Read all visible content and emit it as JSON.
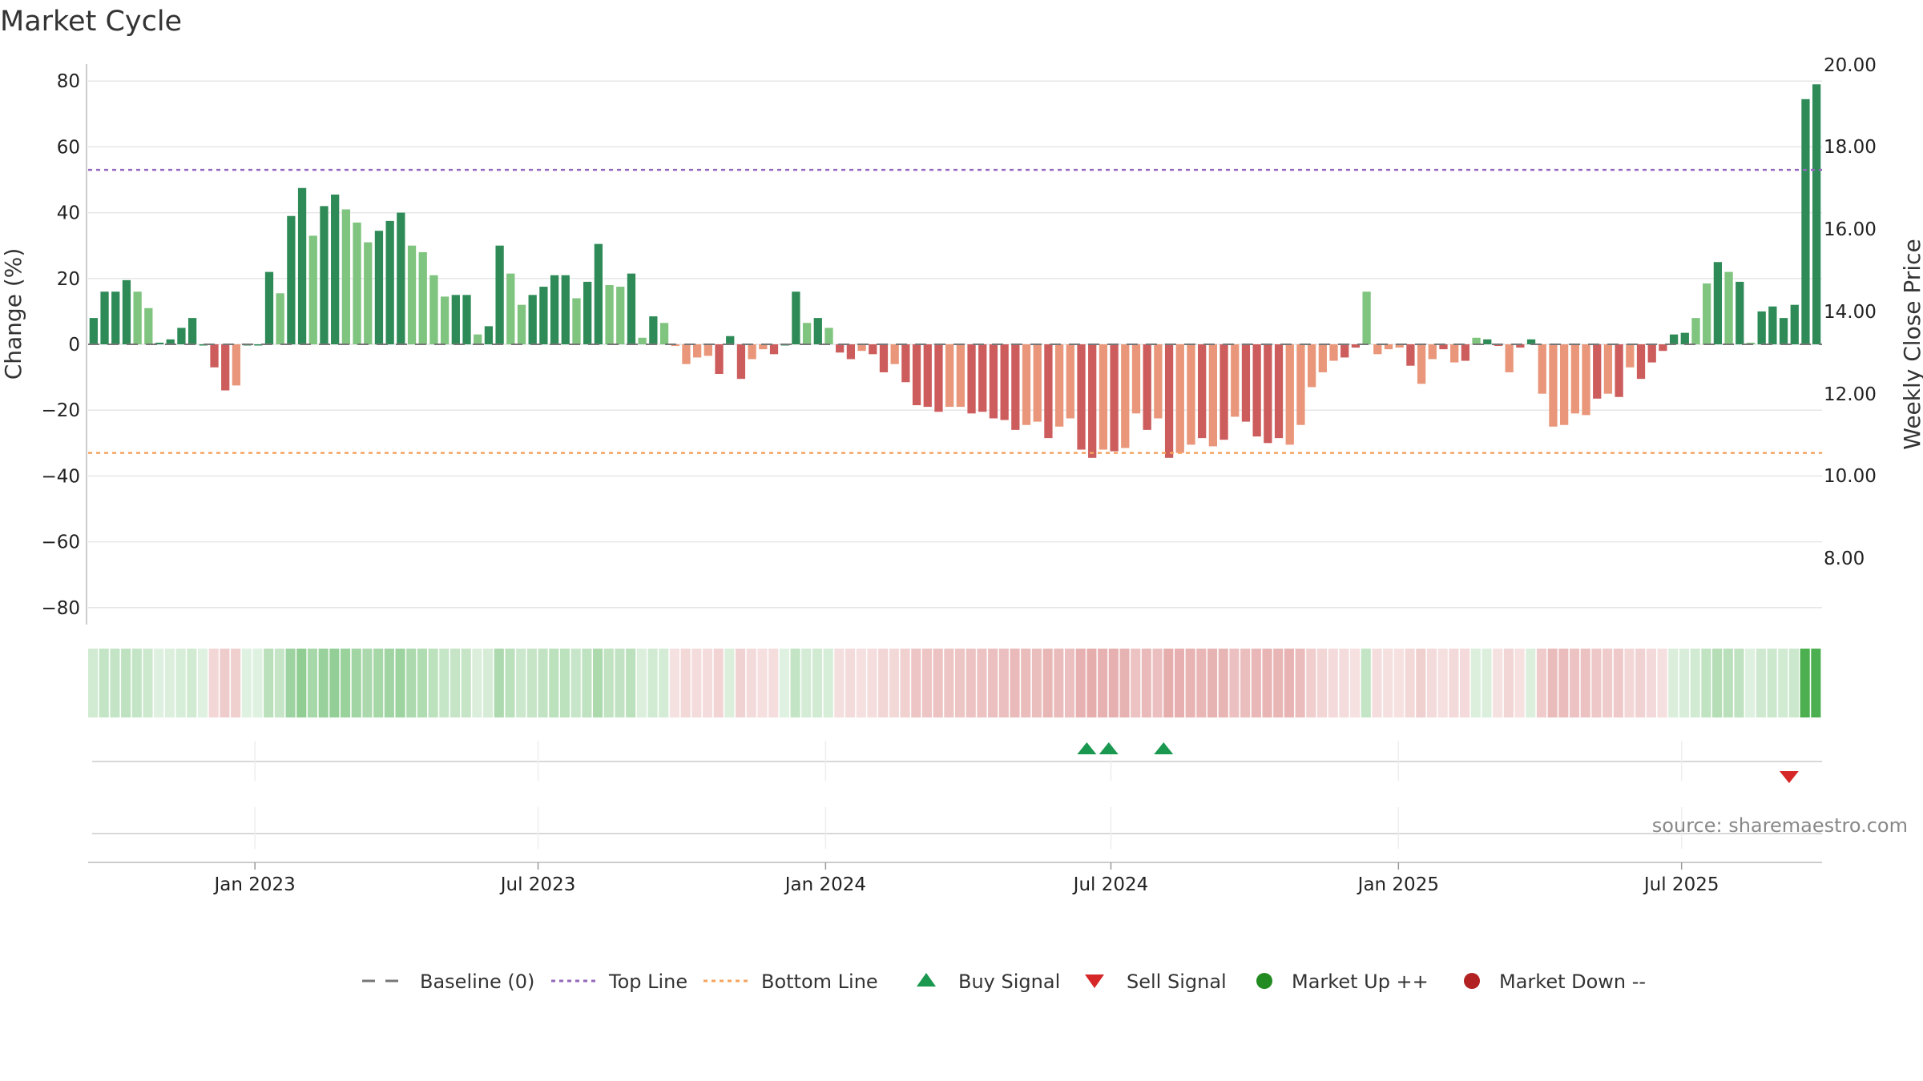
{
  "chart_data": {
    "type": "bar",
    "title": "Market Cycle",
    "ylabel": "Change (%)",
    "y2label": "Weekly Close Price",
    "ylim": [
      -85,
      85
    ],
    "yticks": [
      80,
      60,
      40,
      20,
      0,
      -20,
      -40,
      -60,
      -80
    ],
    "ytick_labels": [
      "80",
      "60",
      "40",
      "20",
      "0",
      "−20",
      "−40",
      "−60",
      "−80"
    ],
    "y2ticks": [
      "20.00",
      "18.00",
      "16.00",
      "14.00",
      "12.00",
      "10.00",
      "8.00"
    ],
    "top_line": 53,
    "bottom_line": -33,
    "xticks": [
      {
        "label": "Jan 2023",
        "index": 14.7
      },
      {
        "label": "Jul 2023",
        "index": 40.5
      },
      {
        "label": "Jan 2024",
        "index": 66.7
      },
      {
        "label": "Jul 2024",
        "index": 92.7
      },
      {
        "label": "Jan 2025",
        "index": 118.9
      },
      {
        "label": "Jul 2025",
        "index": 144.7
      }
    ],
    "values": [
      8,
      16,
      16,
      19.5,
      16,
      11,
      0.5,
      1.5,
      5,
      8,
      0,
      -7,
      -14,
      -12.5,
      0,
      0,
      22,
      15.5,
      39,
      47.5,
      33,
      42,
      45.5,
      41,
      37,
      31,
      34.5,
      37.5,
      40,
      30,
      28,
      21,
      14.5,
      15,
      15,
      3,
      5.5,
      30,
      21.5,
      12,
      15,
      17.5,
      21,
      21,
      14,
      19,
      30.5,
      18,
      17.5,
      21.5,
      2,
      8.5,
      6.5,
      -0.5,
      -6,
      -4,
      -3.5,
      -9,
      2.5,
      -10.5,
      -4.5,
      -1.5,
      -3,
      0,
      16,
      6.5,
      8,
      5,
      -2.5,
      -4.5,
      -2,
      -3,
      -8.5,
      -6,
      -11.5,
      -18.5,
      -19,
      -20.5,
      -19,
      -19,
      -21,
      -20.5,
      -22.5,
      -23,
      -26,
      -24.5,
      -23.5,
      -28.5,
      -25,
      -22.5,
      -32,
      -34.5,
      -32,
      -32.5,
      -31.5,
      -21,
      -26,
      -22.5,
      -34.5,
      -33,
      -30.5,
      -28.5,
      -31,
      -29,
      -22,
      -23.5,
      -28,
      -30,
      -28.5,
      -30.5,
      -24.5,
      -13,
      -8.5,
      -5,
      -4,
      -1,
      16,
      -3,
      -1.5,
      -1,
      -6.5,
      -12,
      -4.5,
      -1.5,
      -5.5,
      -5,
      2,
      1.5,
      -0.5,
      -8.5,
      -1,
      1.5,
      -15,
      -25,
      -24.5,
      -21,
      -21.5,
      -16.5,
      -15,
      -16,
      -7,
      -10.5,
      -5.5,
      -2,
      3,
      3.5,
      8,
      18.5,
      25,
      22,
      19,
      0.5,
      10,
      11.5,
      8,
      12,
      74.5,
      79
    ],
    "shades": [
      0,
      0,
      0,
      0,
      1,
      1,
      0,
      0,
      0,
      0,
      0,
      0,
      0,
      1,
      0,
      0,
      0,
      1,
      0,
      0,
      1,
      0,
      0,
      1,
      1,
      1,
      0,
      0,
      0,
      1,
      1,
      1,
      1,
      0,
      0,
      1,
      0,
      0,
      1,
      1,
      0,
      0,
      0,
      0,
      1,
      0,
      0,
      1,
      1,
      0,
      1,
      0,
      1,
      1,
      1,
      1,
      1,
      0,
      0,
      0,
      1,
      1,
      0,
      0,
      0,
      1,
      0,
      1,
      0,
      0,
      1,
      0,
      0,
      1,
      0,
      0,
      0,
      0,
      1,
      1,
      0,
      0,
      0,
      0,
      0,
      1,
      1,
      0,
      1,
      1,
      0,
      0,
      1,
      0,
      1,
      1,
      0,
      1,
      0,
      1,
      1,
      0,
      1,
      0,
      1,
      0,
      0,
      0,
      0,
      1,
      1,
      1,
      1,
      1,
      0,
      0,
      1,
      1,
      1,
      1,
      0,
      1,
      1,
      0,
      1,
      0,
      1,
      0,
      0,
      1,
      0,
      0,
      1,
      1,
      1,
      1,
      1,
      0,
      1,
      0,
      1,
      0,
      0,
      0,
      0,
      0,
      1,
      1,
      0,
      1,
      0,
      1,
      0,
      0,
      0
    ],
    "buy_signals": [
      90.5,
      92.5,
      97.5
    ],
    "sell_signals": [
      154.5
    ],
    "legend": [
      {
        "label": "Baseline (0)",
        "kind": "dash-line",
        "color": "#777777"
      },
      {
        "label": "Top Line",
        "kind": "dot-line",
        "color": "#9467bd"
      },
      {
        "label": "Bottom Line",
        "kind": "dot-line",
        "color": "#f4a460"
      },
      {
        "label": "Buy Signal",
        "kind": "triangle-up",
        "color": "#1a9850"
      },
      {
        "label": "Sell Signal",
        "kind": "triangle-down",
        "color": "#d62728"
      },
      {
        "label": "Market Up ++",
        "kind": "circle",
        "color": "#228b22"
      },
      {
        "label": "Market Down --",
        "kind": "circle",
        "color": "#b22222"
      }
    ],
    "colors": {
      "pos_dark": "#2e8b57",
      "pos_light": "#7fc47f",
      "neg_dark": "#cd5c5c",
      "neg_light": "#e9967a",
      "top_line": "#9467bd",
      "bottom_line": "#f4a460",
      "grid": "#e6e6e6"
    }
  },
  "source": "source: sharemaestro.com"
}
